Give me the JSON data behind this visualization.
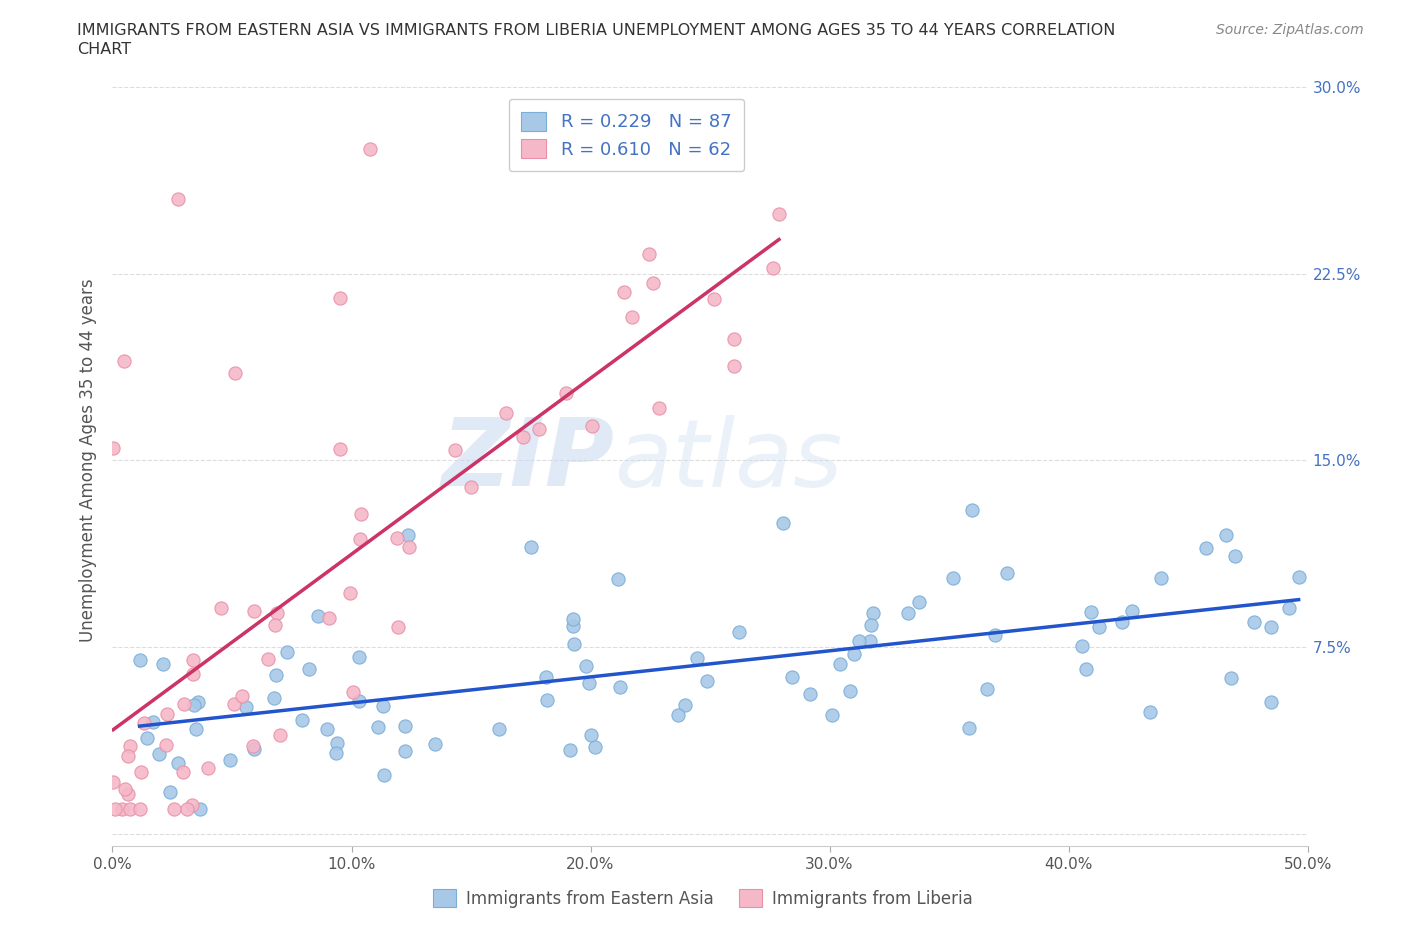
{
  "title_line1": "IMMIGRANTS FROM EASTERN ASIA VS IMMIGRANTS FROM LIBERIA UNEMPLOYMENT AMONG AGES 35 TO 44 YEARS CORRELATION",
  "title_line2": "CHART",
  "source": "Source: ZipAtlas.com",
  "ylabel": "Unemployment Among Ages 35 to 44 years",
  "xlim": [
    0.0,
    0.5
  ],
  "ylim": [
    -0.005,
    0.305
  ],
  "xticks": [
    0.0,
    0.1,
    0.2,
    0.3,
    0.4,
    0.5
  ],
  "yticks": [
    0.0,
    0.075,
    0.15,
    0.225,
    0.3
  ],
  "xticklabels": [
    "0.0%",
    "10.0%",
    "20.0%",
    "30.0%",
    "40.0%",
    "50.0%"
  ],
  "yticklabels_right": [
    "",
    "7.5%",
    "15.0%",
    "22.5%",
    "30.0%"
  ],
  "blue_face": "#a8c8e8",
  "blue_edge": "#7aaed6",
  "pink_face": "#f5b8c8",
  "pink_edge": "#e890a8",
  "trend_blue": "#2255cc",
  "trend_pink": "#cc3366",
  "R_blue": 0.229,
  "N_blue": 87,
  "R_pink": 0.61,
  "N_pink": 62,
  "legend_label_blue": "Immigrants from Eastern Asia",
  "legend_label_pink": "Immigrants from Liberia",
  "watermark_zip": "ZIP",
  "watermark_atlas": "atlas",
  "background_color": "#ffffff",
  "grid_color": "#dddddd",
  "title_color": "#333333",
  "source_color": "#888888",
  "ylabel_color": "#555555",
  "tick_color": "#555555",
  "right_tick_color": "#4472c4",
  "legend_text_color": "#4472c4"
}
